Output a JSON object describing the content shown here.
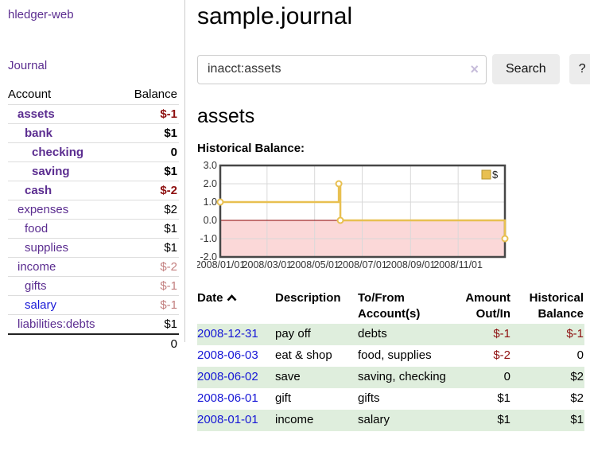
{
  "app": {
    "brand": "hledger-web",
    "nav": {
      "journal": "Journal"
    }
  },
  "colors": {
    "link_purple": "#5b2d90",
    "link_blue": "#1717d6",
    "negative_strong": "#8e1010",
    "negative_faded": "#c37f7f",
    "row_stripe_green": "#dfeedd",
    "chart_line_gold": "#e8c051",
    "chart_negative_fill": "#fbd8d8",
    "chart_zero_line": "#8b0000",
    "button_gray": "#ececec"
  },
  "sidebar": {
    "accounts_table": {
      "headers": {
        "account": "Account",
        "balance": "Balance"
      },
      "rows": [
        {
          "name": "assets",
          "balance": "$-1",
          "indent": 1,
          "bold": true,
          "name_color": "purple",
          "balance_color": "neg"
        },
        {
          "name": "bank",
          "balance": "$1",
          "indent": 2,
          "bold": true,
          "name_color": "purple",
          "balance_color": "pos"
        },
        {
          "name": "checking",
          "balance": "0",
          "indent": 3,
          "bold": true,
          "name_color": "purple",
          "balance_color": "pos"
        },
        {
          "name": "saving",
          "balance": "$1",
          "indent": 3,
          "bold": true,
          "name_color": "purple",
          "balance_color": "pos"
        },
        {
          "name": "cash",
          "balance": "$-2",
          "indent": 2,
          "bold": true,
          "name_color": "purple",
          "balance_color": "neg"
        },
        {
          "name": "expenses",
          "balance": "$2",
          "indent": 1,
          "bold": false,
          "name_color": "purple",
          "balance_color": "pos"
        },
        {
          "name": "food",
          "balance": "$1",
          "indent": 2,
          "bold": false,
          "name_color": "purple",
          "balance_color": "pos"
        },
        {
          "name": "supplies",
          "balance": "$1",
          "indent": 2,
          "bold": false,
          "name_color": "purple",
          "balance_color": "pos"
        },
        {
          "name": "income",
          "balance": "$-2",
          "indent": 1,
          "bold": false,
          "name_color": "purple",
          "balance_color": "negf"
        },
        {
          "name": "gifts",
          "balance": "$-1",
          "indent": 2,
          "bold": false,
          "name_color": "purple",
          "balance_color": "negf"
        },
        {
          "name": "salary",
          "balance": "$-1",
          "indent": 2,
          "bold": false,
          "name_color": "blue",
          "balance_color": "negf"
        },
        {
          "name": "liabilities:debts",
          "balance": "$1",
          "indent": 1,
          "bold": false,
          "name_color": "purple",
          "balance_color": "pos"
        }
      ],
      "total": "0"
    }
  },
  "main": {
    "title": "sample.journal",
    "search": {
      "value": "inacct:assets",
      "clear_icon": "×",
      "search_button": "Search",
      "help_button": "?"
    },
    "account_heading": "assets",
    "chart_label": "Historical Balance:",
    "register_table": {
      "headers": {
        "date": "Date",
        "description": "Description",
        "accounts": "To/From Account(s)",
        "amount": "Amount Out/In",
        "balance": "Historical Balance"
      },
      "rows": [
        {
          "date": "2008-12-31",
          "description": "pay off",
          "accounts": "debts",
          "amount": "$-1",
          "balance": "$-1",
          "amount_neg": true,
          "balance_neg": true
        },
        {
          "date": "2008-06-03",
          "description": "eat & shop",
          "accounts": "food, supplies",
          "amount": "$-2",
          "balance": "0",
          "amount_neg": true,
          "balance_neg": false
        },
        {
          "date": "2008-06-02",
          "description": "save",
          "accounts": "saving, checking",
          "amount": "0",
          "balance": "$2",
          "amount_neg": false,
          "balance_neg": false
        },
        {
          "date": "2008-06-01",
          "description": "gift",
          "accounts": "gifts",
          "amount": "$1",
          "balance": "$2",
          "amount_neg": false,
          "balance_neg": false
        },
        {
          "date": "2008-01-01",
          "description": "income",
          "accounts": "salary",
          "amount": "$1",
          "balance": "$1",
          "amount_neg": false,
          "balance_neg": false
        }
      ]
    }
  },
  "chart_data": {
    "type": "line",
    "subtype": "step-after",
    "title": "Historical Balance:",
    "legend": [
      {
        "label": "$",
        "color": "#e8c051"
      }
    ],
    "legend_position": "top-right",
    "grid": true,
    "x_domain": [
      "2008-01-01",
      "2008-12-31"
    ],
    "x_ticks": [
      "2008/01/01",
      "2008/03/01",
      "2008/05/01",
      "2008/07/01",
      "2008/09/01",
      "2008/11/01"
    ],
    "y_ticks": [
      3.0,
      2.0,
      1.0,
      0.0,
      -1.0,
      -2.0
    ],
    "ylim": [
      -2.0,
      3.0
    ],
    "negative_region_shaded": true,
    "series": [
      {
        "name": "$",
        "points": [
          [
            "2008-01-01",
            1
          ],
          [
            "2008-06-01",
            2
          ],
          [
            "2008-06-03",
            0
          ],
          [
            "2008-12-31",
            -1
          ]
        ]
      }
    ]
  }
}
